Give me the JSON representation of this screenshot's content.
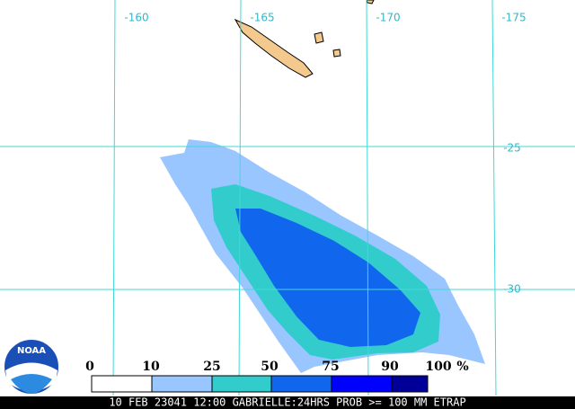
{
  "map": {
    "longitude_labels": [
      "-160",
      "-165",
      "-170",
      "-175"
    ],
    "latitude_labels": [
      "-25",
      "-30"
    ],
    "logo": "NOAA"
  },
  "legend": {
    "labels": [
      "0",
      "10",
      "25",
      "50",
      "75",
      "90",
      "100"
    ],
    "unit": "%",
    "colors": [
      "#ffffff",
      "#99c6ff",
      "#33cccc",
      "#1166ee",
      "#0000ff",
      "#000099"
    ]
  },
  "caption": "10 FEB 23041 12:00 GABRIELLE:24HRS PROB >= 100 MM ETRAP"
}
